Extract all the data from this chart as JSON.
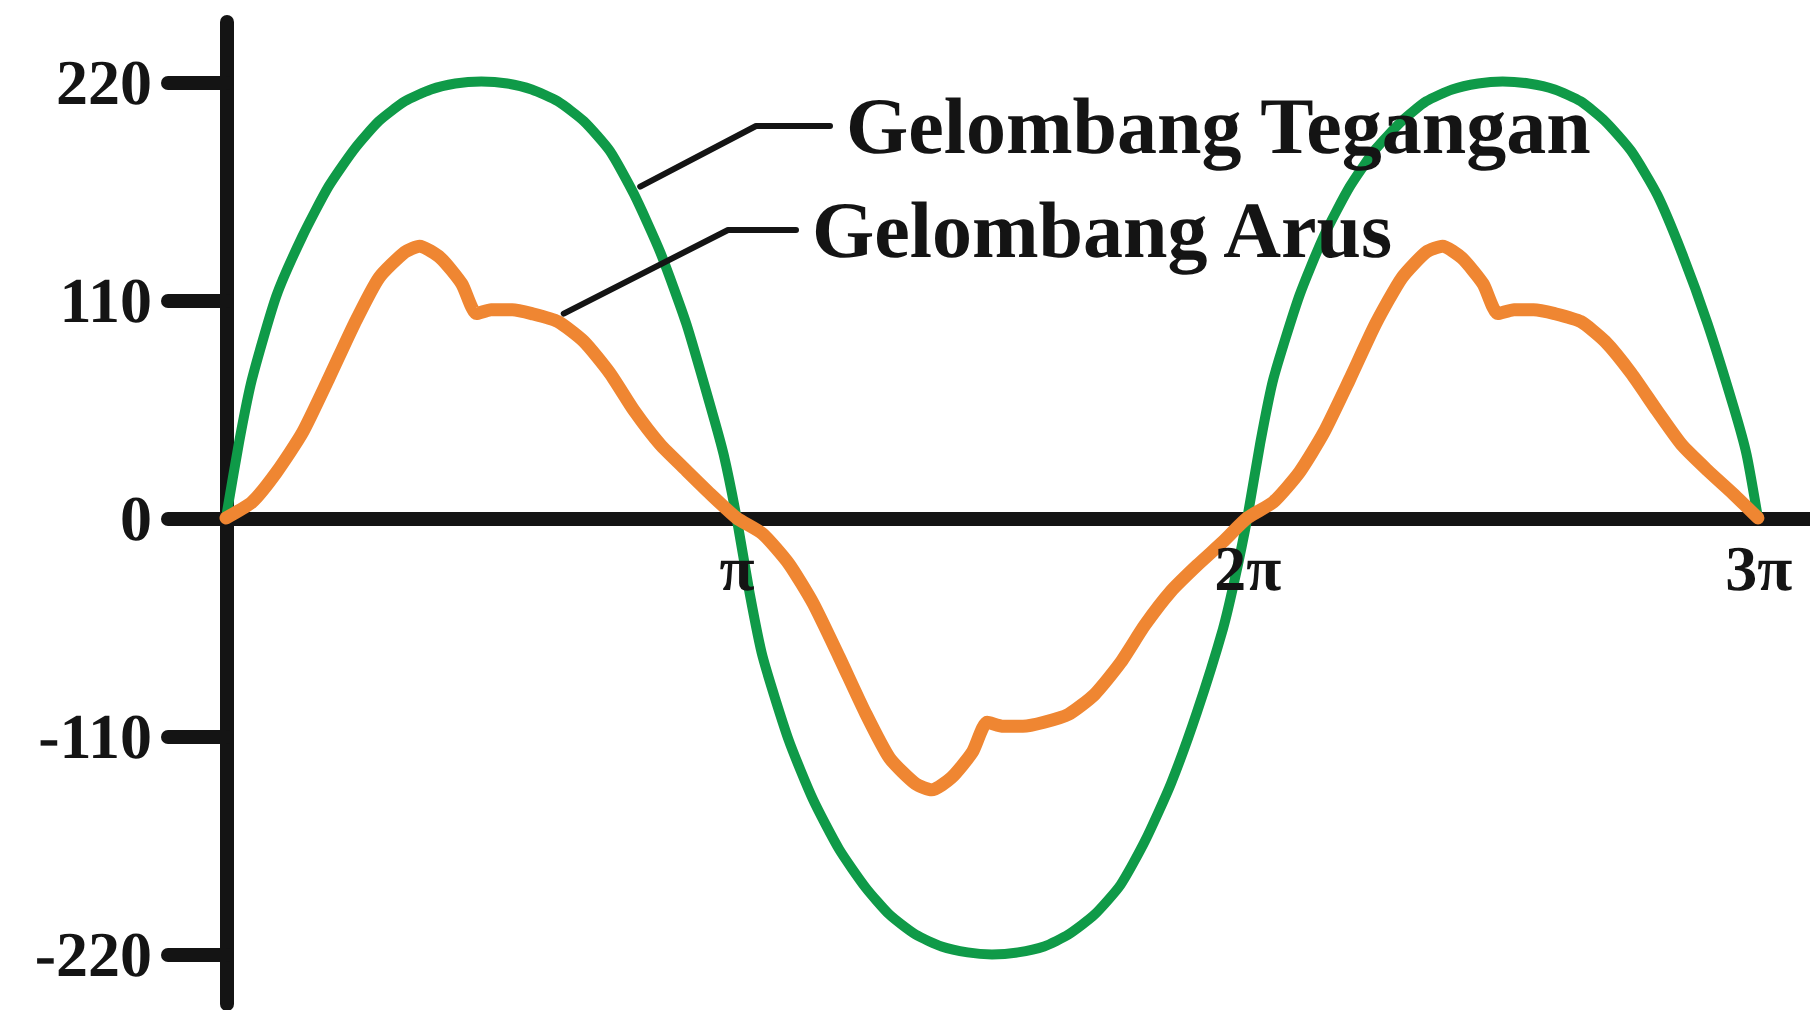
{
  "chart_data": {
    "type": "line",
    "xlim": [
      0,
      9.74
    ],
    "xticks": [
      {
        "value": 3.1416,
        "label": "π"
      },
      {
        "value": 6.2832,
        "label": "2π"
      },
      {
        "value": 9.4248,
        "label": "3π"
      }
    ],
    "ylim": [
      -245,
      250
    ],
    "yticks": [
      -220,
      -110,
      0,
      110,
      220
    ],
    "series": [
      {
        "name": "Gelombang Tegangan",
        "color": "#0f9a48",
        "x": [
          0,
          0.08,
          0.16,
          0.31,
          0.47,
          0.63,
          0.79,
          0.94,
          1.1,
          1.26,
          1.41,
          1.57,
          1.73,
          1.88,
          2.04,
          2.2,
          2.36,
          2.51,
          2.67,
          2.83,
          2.98,
          3.06,
          3.14,
          3.22,
          3.3,
          3.46,
          3.61,
          3.77,
          3.93,
          4.08,
          4.24,
          4.4,
          4.56,
          4.71,
          4.87,
          5.03,
          5.18,
          5.34,
          5.5,
          5.65,
          5.81,
          5.97,
          6.13,
          6.2,
          6.28,
          6.36,
          6.44,
          6.6,
          6.75,
          6.91,
          7.07,
          7.23,
          7.38,
          7.54,
          7.7,
          7.85,
          8.01,
          8.17,
          8.33,
          8.48,
          8.64,
          8.8,
          8.95,
          9.11,
          9.27,
          9.35,
          9.42
        ],
        "values": [
          0,
          38,
          70,
          112,
          142,
          167,
          186,
          200,
          210,
          216,
          219,
          220,
          219,
          216,
          210,
          200,
          185,
          163,
          134,
          98,
          56,
          32,
          0,
          -38,
          -70,
          -112,
          -142,
          -167,
          -186,
          -200,
          -210,
          -216,
          -219,
          -220,
          -219,
          -216,
          -210,
          -200,
          -185,
          -163,
          -134,
          -98,
          -56,
          -32,
          0,
          38,
          70,
          112,
          142,
          167,
          186,
          200,
          210,
          216,
          219,
          220,
          219,
          216,
          210,
          200,
          185,
          163,
          134,
          98,
          56,
          32,
          0
        ]
      },
      {
        "name": "Gelombang Arus",
        "color": "#ef8632",
        "x": [
          0,
          0.16,
          0.31,
          0.47,
          0.63,
          0.79,
          0.94,
          1.1,
          1.19,
          1.32,
          1.45,
          1.54,
          1.63,
          1.76,
          1.88,
          2.04,
          2.2,
          2.36,
          2.51,
          2.67,
          2.83,
          2.98,
          3.14,
          3.3,
          3.46,
          3.61,
          3.77,
          3.93,
          4.08,
          4.24,
          4.34,
          4.46,
          4.59,
          4.68,
          4.78,
          4.9,
          5.03,
          5.18,
          5.34,
          5.5,
          5.65,
          5.81,
          5.97,
          6.13,
          6.28,
          6.44,
          6.6,
          6.75,
          6.91,
          7.07,
          7.23,
          7.38,
          7.48,
          7.6,
          7.73,
          7.82,
          7.92,
          8.04,
          8.17,
          8.33,
          8.48,
          8.64,
          8.8,
          8.95,
          9.11,
          9.27,
          9.42
        ],
        "values": [
          0,
          8,
          23,
          43,
          70,
          98,
          121,
          134,
          137,
          131,
          118,
          103,
          105,
          105,
          103,
          99,
          89,
          73,
          54,
          37,
          24,
          12,
          0,
          -8,
          -23,
          -43,
          -70,
          -98,
          -121,
          -134,
          -137,
          -131,
          -118,
          -103,
          -105,
          -105,
          -103,
          -99,
          -89,
          -73,
          -54,
          -37,
          -24,
          -12,
          0,
          8,
          23,
          43,
          70,
          98,
          121,
          134,
          137,
          131,
          118,
          103,
          105,
          105,
          103,
          99,
          89,
          73,
          54,
          37,
          24,
          12,
          0
        ]
      }
    ]
  }
}
